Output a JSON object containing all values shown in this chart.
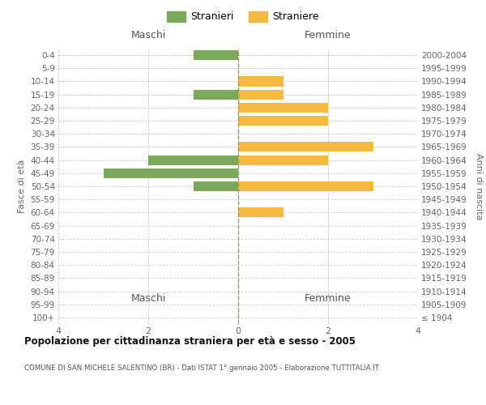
{
  "age_groups": [
    "100+",
    "95-99",
    "90-94",
    "85-89",
    "80-84",
    "75-79",
    "70-74",
    "65-69",
    "60-64",
    "55-59",
    "50-54",
    "45-49",
    "40-44",
    "35-39",
    "30-34",
    "25-29",
    "20-24",
    "15-19",
    "10-14",
    "5-9",
    "0-4"
  ],
  "birth_years": [
    "≤ 1904",
    "1905-1909",
    "1910-1914",
    "1915-1919",
    "1920-1924",
    "1925-1929",
    "1930-1934",
    "1935-1939",
    "1940-1944",
    "1945-1949",
    "1950-1954",
    "1955-1959",
    "1960-1964",
    "1965-1969",
    "1970-1974",
    "1975-1979",
    "1980-1984",
    "1985-1989",
    "1990-1994",
    "1995-1999",
    "2000-2004"
  ],
  "maschi": [
    0,
    0,
    0,
    0,
    0,
    0,
    0,
    0,
    0,
    0,
    1,
    3,
    2,
    0,
    0,
    0,
    0,
    1,
    0,
    0,
    1
  ],
  "femmine": [
    0,
    0,
    0,
    0,
    0,
    0,
    0,
    0,
    1,
    0,
    3,
    0,
    2,
    3,
    0,
    2,
    2,
    1,
    1,
    0,
    0
  ],
  "maschi_color": "#7aaa59",
  "femmine_color": "#f5b942",
  "title": "Popolazione per cittadinanza straniera per età e sesso - 2005",
  "subtitle": "COMUNE DI SAN MICHELE SALENTINO (BR) - Dati ISTAT 1° gennaio 2005 - Elaborazione TUTTITALIA.IT",
  "xlabel_left": "Maschi",
  "xlabel_right": "Femmine",
  "ylabel_left": "Fasce di età",
  "ylabel_right": "Anni di nascita",
  "legend_stranieri": "Stranieri",
  "legend_straniere": "Straniere",
  "xlim": 4,
  "background_color": "#ffffff",
  "grid_color": "#cccccc"
}
